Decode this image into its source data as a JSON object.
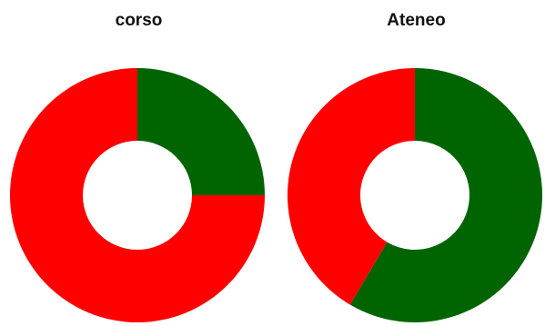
{
  "chart_data": [
    {
      "type": "pie",
      "title": "corso",
      "donut": true,
      "slices": [
        {
          "value": 0.25,
          "color": "#006400"
        },
        {
          "value": 0.75,
          "color": "#ff0000"
        }
      ]
    },
    {
      "type": "pie",
      "title": "Ateneo",
      "donut": true,
      "slices": [
        {
          "value": 0.585,
          "color": "#006400"
        },
        {
          "value": 0.415,
          "color": "#ff0000"
        }
      ]
    }
  ]
}
